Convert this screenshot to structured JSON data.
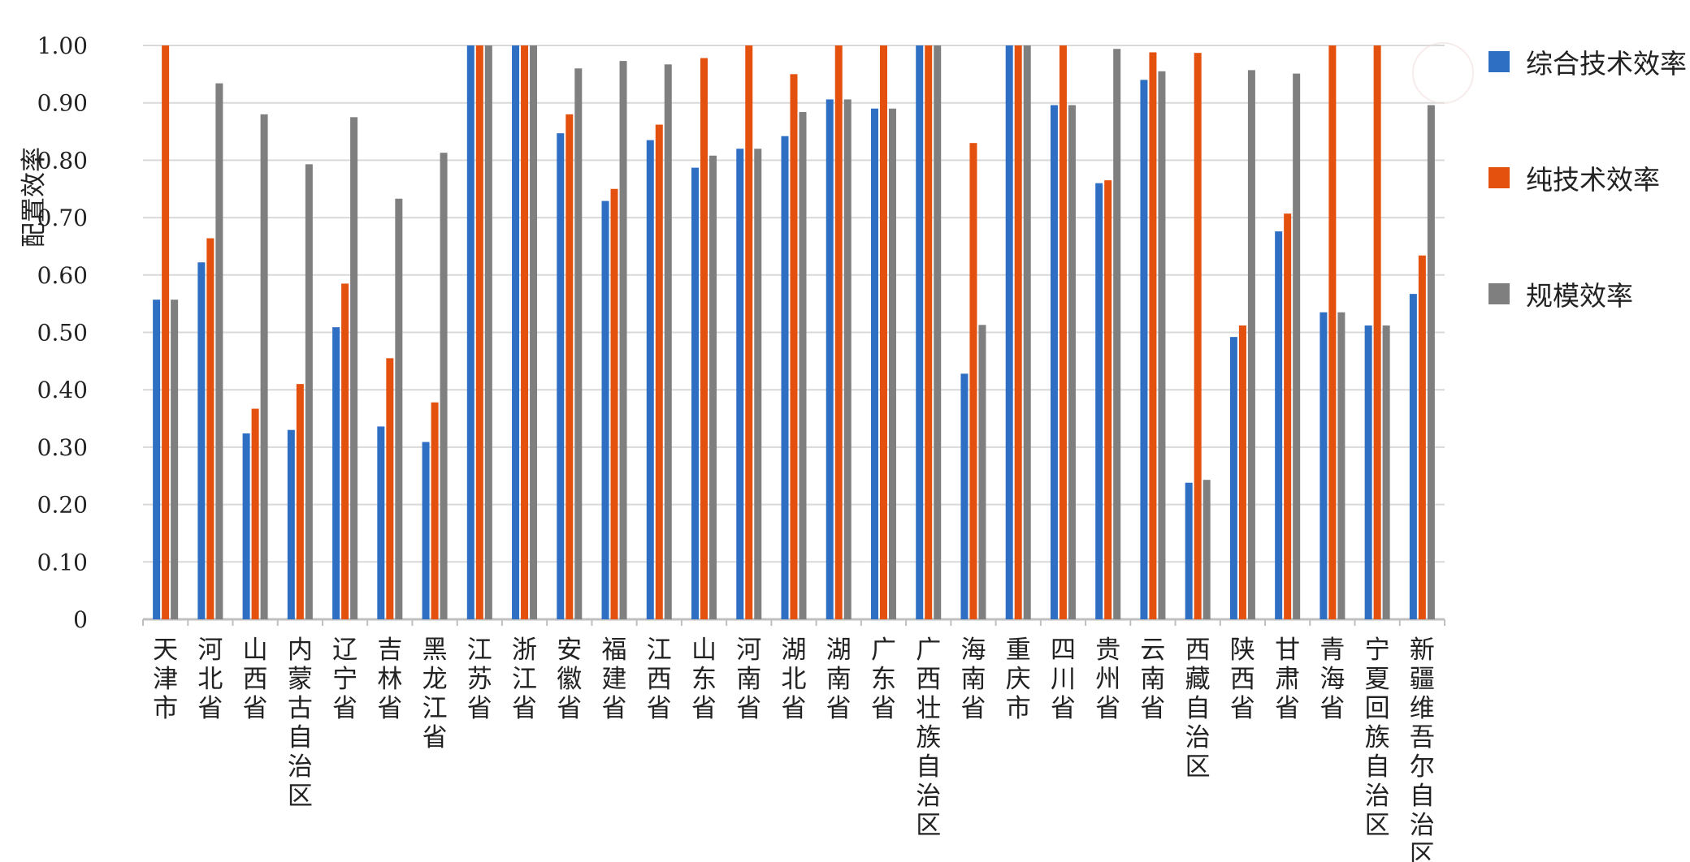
{
  "chart_data": {
    "type": "bar",
    "title": "",
    "xlabel": "",
    "ylabel": "配置效率",
    "ylim": [
      0,
      1.0
    ],
    "yticks": [
      "0",
      "0.10",
      "0.20",
      "0.30",
      "0.40",
      "0.50",
      "0.60",
      "0.70",
      "0.80",
      "0.90",
      "1.00"
    ],
    "grid": true,
    "legend_position": "right",
    "categories": [
      "天津市",
      "河北省",
      "山西省",
      "内蒙古自治区",
      "辽宁省",
      "吉林省",
      "黑龙江省",
      "江苏省",
      "浙江省",
      "安徽省",
      "福建省",
      "江西省",
      "山东省",
      "河南省",
      "湖北省",
      "湖南省",
      "广东省",
      "广西壮族自治区",
      "海南省",
      "重庆市",
      "四川省",
      "贵州省",
      "云南省",
      "西藏自治区",
      "陕西省",
      "甘肃省",
      "青海省",
      "宁夏回族自治区",
      "新疆维吾尔自治区"
    ],
    "series": [
      {
        "name": "综合技术效率",
        "color": "#2e6fc4",
        "values": [
          0.557,
          0.622,
          0.324,
          0.33,
          0.509,
          0.336,
          0.309,
          1.0,
          1.0,
          0.847,
          0.729,
          0.835,
          0.787,
          0.82,
          0.842,
          0.906,
          0.89,
          1.0,
          0.428,
          1.0,
          0.896,
          0.76,
          0.94,
          0.238,
          0.492,
          0.676,
          0.535,
          0.512,
          0.567
        ]
      },
      {
        "name": "纯技术效率",
        "color": "#e4500e",
        "values": [
          1.0,
          0.664,
          0.367,
          0.41,
          0.585,
          0.455,
          0.378,
          1.0,
          1.0,
          0.88,
          0.75,
          0.862,
          0.978,
          1.0,
          0.95,
          1.0,
          1.0,
          1.0,
          0.83,
          1.0,
          1.0,
          0.765,
          0.988,
          0.987,
          0.512,
          0.707,
          1.0,
          1.0,
          0.634
        ]
      },
      {
        "name": "规模效率",
        "color": "#7f7f7f",
        "values": [
          0.557,
          0.934,
          0.88,
          0.793,
          0.875,
          0.733,
          0.813,
          1.0,
          1.0,
          0.96,
          0.973,
          0.967,
          0.808,
          0.82,
          0.884,
          0.906,
          0.89,
          1.0,
          0.513,
          1.0,
          0.896,
          0.994,
          0.955,
          0.243,
          0.957,
          0.951,
          0.535,
          0.512,
          0.896
        ]
      }
    ]
  }
}
